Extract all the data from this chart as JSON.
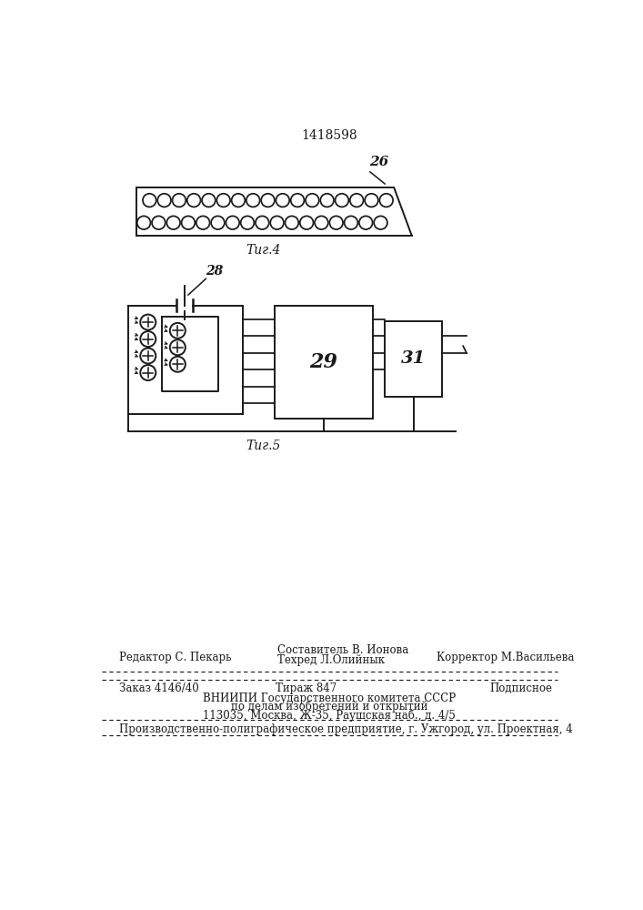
{
  "bg_color": "#ffffff",
  "patent_number": "1418598",
  "fig4_label": "Τиг.4",
  "fig5_label": "Τиг.5",
  "label_26": "26",
  "label_28": "28",
  "label_29": "29",
  "label_31": "31",
  "editor_line": "Редактор С. Пекарь",
  "compiler_line": "Составитель В. Ионова",
  "techred_line": "Техред Л.Олийнык",
  "corrector_line": "Корректор М.Васильева",
  "order_line": "Заказ 4146/40",
  "tirazh_line": "Тираж 847",
  "podpisnoe_line": "Подписное",
  "vniipis_line1": "ВНИИПИ Государственного комитета СССР",
  "vniipis_line2": "по делам изобретений и открытий",
  "vniipis_line3": "113035, Москва, Ж-35, Раушская наб., д. 4/5",
  "production_line": "Производственно-полиграфическое предприятие, г. Ужгород, ул. Проектная, 4"
}
